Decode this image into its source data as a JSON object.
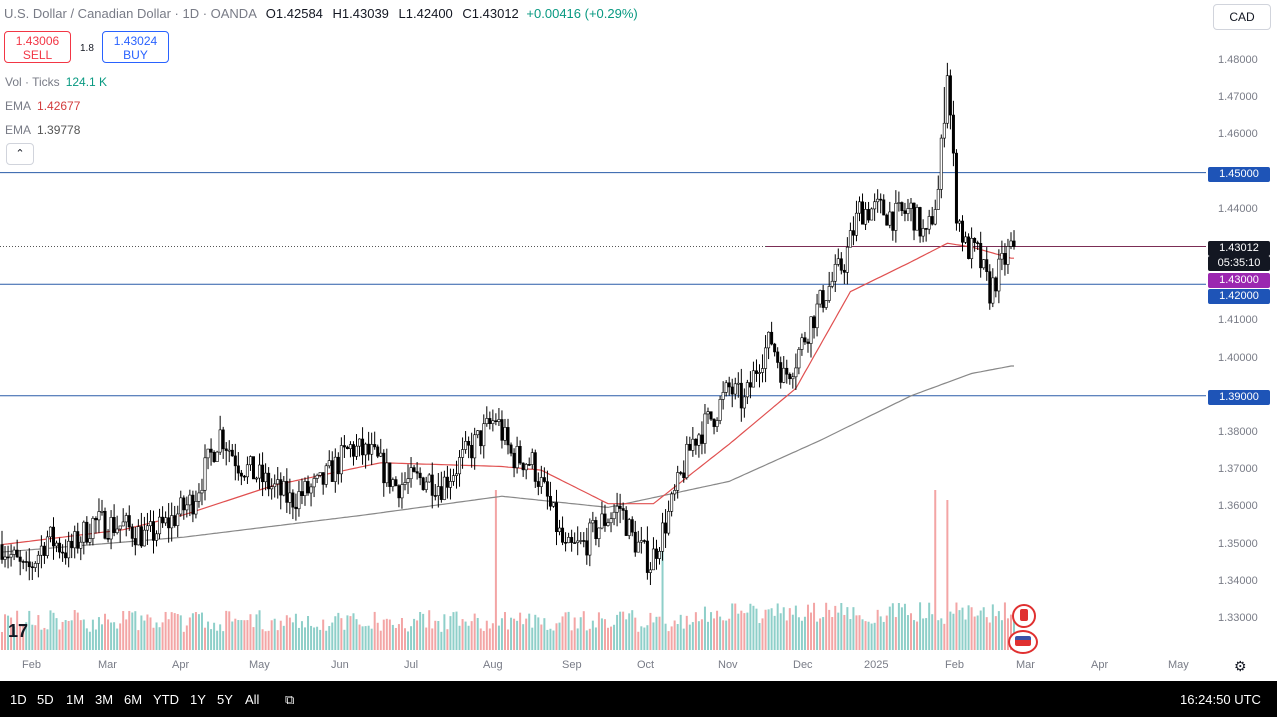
{
  "header": {
    "symbol_line": "U.S. Dollar / Canadian Dollar · 1D · OANDA",
    "o_label": "O",
    "o_value": "1.42584",
    "h_label": "H",
    "h_value": "1.43039",
    "l_label": "L",
    "l_value": "1.42400",
    "c_label": "C",
    "c_value": "1.43012",
    "change": "+0.00416 (+0.29%)"
  },
  "trade": {
    "sell_price": "1.43006",
    "sell_label": "SELL",
    "spread": "1.8",
    "buy_price": "1.43024",
    "buy_label": "BUY"
  },
  "indicators": {
    "vol_label": "Vol · Ticks",
    "vol_value": "124.1 K",
    "ema1_label": "EMA",
    "ema1_value": "1.42677",
    "ema2_label": "EMA",
    "ema2_value": "1.39778",
    "collapse_glyph": "⌃"
  },
  "currency_button": "CAD",
  "y_tags": {
    "level_145": "1.45000",
    "last_price": "1.43012",
    "countdown": "05:35:10",
    "level_143": "1.43000",
    "level_142": "1.42000",
    "level_139": "1.39000"
  },
  "bottom_bar": {
    "timeframes": [
      "1D",
      "5D",
      "1M",
      "3M",
      "6M",
      "YTD",
      "1Y",
      "5Y",
      "All"
    ],
    "clock": "16:24:50 UTC"
  },
  "colors": {
    "up": "#26a69a",
    "down": "#000000",
    "ema_fast": "#e05050",
    "ema_slow": "#888888",
    "hline": "#2a5ca8",
    "price_line": "#7b2d55",
    "vol_up": "#8ecfc9",
    "vol_down": "#f3a5a5",
    "tag_blue": "#1e54b7",
    "tag_purple": "#9b27b0",
    "tag_dark": "#131722"
  },
  "chart_data": {
    "type": "candlestick",
    "y_axis": {
      "ylim": [
        1.325,
        1.485
      ],
      "ticks": [
        "1.33000",
        "1.34000",
        "1.35000",
        "1.36000",
        "1.37000",
        "1.38000",
        "1.39000",
        "1.40000",
        "1.41000",
        "1.42000",
        "1.43000",
        "1.44000",
        "1.45000",
        "1.46000",
        "1.47000",
        "1.48000"
      ]
    },
    "x_axis": {
      "labels": [
        "Feb",
        "Mar",
        "Apr",
        "May",
        "Jun",
        "Jul",
        "Aug",
        "Sep",
        "Oct",
        "Nov",
        "Dec",
        "2025",
        "Feb",
        "Mar",
        "Apr",
        "May"
      ]
    },
    "horizontal_levels": [
      1.45,
      1.42,
      1.39
    ],
    "last_close": 1.43012,
    "anchors": [
      [
        0,
        1.35
      ],
      [
        8,
        1.342
      ],
      [
        15,
        1.352
      ],
      [
        22,
        1.348
      ],
      [
        30,
        1.356
      ],
      [
        40,
        1.355
      ],
      [
        48,
        1.352
      ],
      [
        55,
        1.356
      ],
      [
        63,
        1.362
      ],
      [
        72,
        1.38
      ],
      [
        78,
        1.372
      ],
      [
        85,
        1.368
      ],
      [
        95,
        1.362
      ],
      [
        105,
        1.366
      ],
      [
        115,
        1.376
      ],
      [
        122,
        1.374
      ],
      [
        130,
        1.366
      ],
      [
        140,
        1.368
      ],
      [
        145,
        1.366
      ],
      [
        155,
        1.376
      ],
      [
        163,
        1.384
      ],
      [
        168,
        1.374
      ],
      [
        175,
        1.372
      ],
      [
        180,
        1.362
      ],
      [
        186,
        1.348
      ],
      [
        192,
        1.35
      ],
      [
        198,
        1.356
      ],
      [
        204,
        1.36
      ],
      [
        208,
        1.352
      ],
      [
        214,
        1.345
      ],
      [
        220,
        1.358
      ],
      [
        228,
        1.378
      ],
      [
        235,
        1.385
      ],
      [
        240,
        1.392
      ],
      [
        245,
        1.388
      ],
      [
        250,
        1.4
      ],
      [
        254,
        1.405
      ],
      [
        258,
        1.395
      ],
      [
        262,
        1.4
      ],
      [
        267,
        1.41
      ],
      [
        272,
        1.418
      ],
      [
        278,
        1.426
      ],
      [
        283,
        1.44
      ],
      [
        290,
        1.44
      ],
      [
        295,
        1.438
      ],
      [
        300,
        1.44
      ],
      [
        305,
        1.432
      ],
      [
        309,
        1.445
      ],
      [
        312,
        1.478
      ],
      [
        315,
        1.44
      ],
      [
        318,
        1.43
      ],
      [
        322,
        1.428
      ],
      [
        326,
        1.418
      ],
      [
        330,
        1.425
      ],
      [
        333,
        1.43
      ]
    ],
    "ema_fast_anchors": [
      [
        0,
        1.35
      ],
      [
        40,
        1.354
      ],
      [
        60,
        1.358
      ],
      [
        90,
        1.366
      ],
      [
        125,
        1.372
      ],
      [
        165,
        1.371
      ],
      [
        178,
        1.37
      ],
      [
        200,
        1.361
      ],
      [
        215,
        1.361
      ],
      [
        240,
        1.377
      ],
      [
        262,
        1.392
      ],
      [
        280,
        1.418
      ],
      [
        300,
        1.426
      ],
      [
        312,
        1.431
      ],
      [
        320,
        1.43
      ],
      [
        333,
        1.427
      ]
    ],
    "ema_slow_anchors": [
      [
        0,
        1.348
      ],
      [
        60,
        1.352
      ],
      [
        120,
        1.358
      ],
      [
        165,
        1.363
      ],
      [
        200,
        1.36
      ],
      [
        240,
        1.367
      ],
      [
        270,
        1.378
      ],
      [
        300,
        1.39
      ],
      [
        320,
        1.396
      ],
      [
        333,
        1.398
      ]
    ],
    "volume_spikes": [
      [
        163,
        1.0
      ],
      [
        218,
        0.6
      ],
      [
        308,
        1.0
      ],
      [
        312,
        0.9
      ]
    ]
  }
}
